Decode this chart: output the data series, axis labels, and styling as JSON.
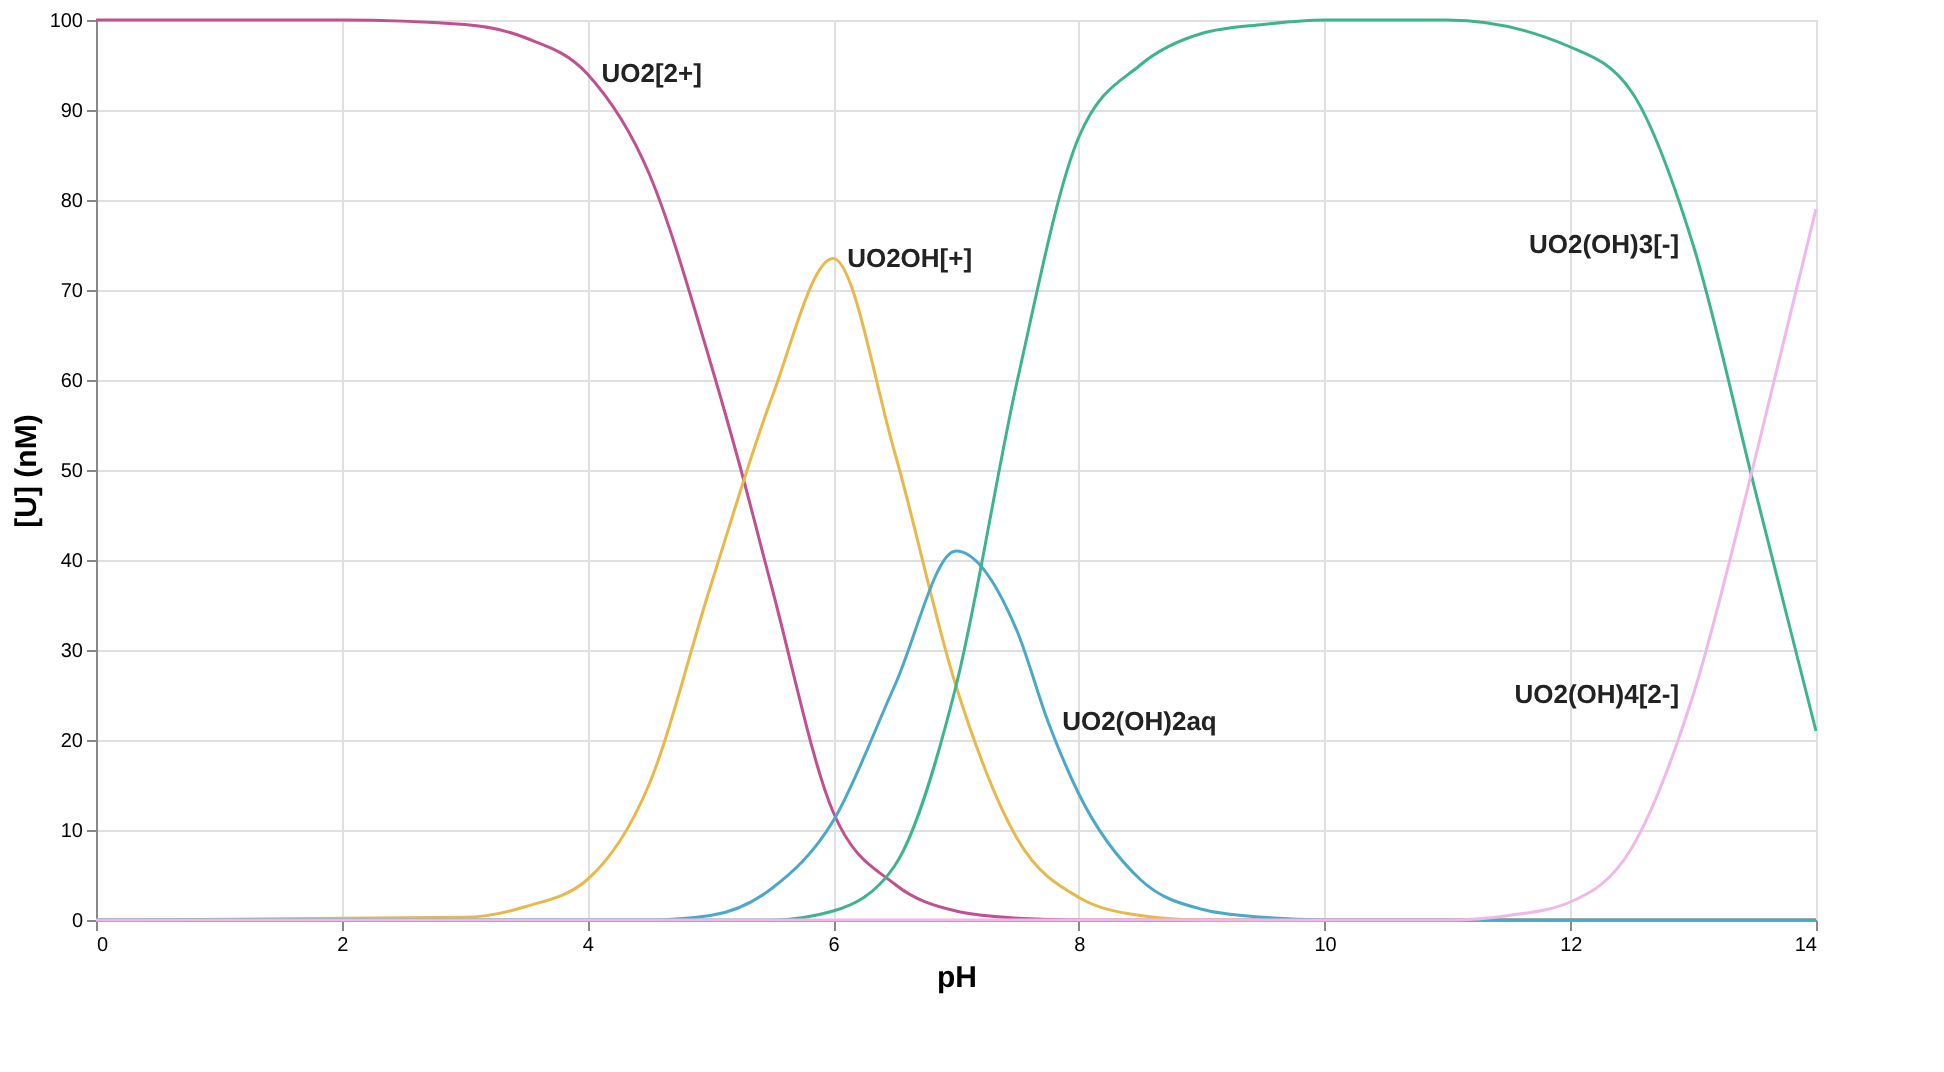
{
  "chart_data": {
    "type": "line",
    "xlabel": "pH",
    "ylabel": "[U] (nM)",
    "xlim": [
      0,
      14
    ],
    "ylim": [
      0,
      100
    ],
    "xticks": [
      {
        "value": 0,
        "label": "0"
      },
      {
        "value": 2,
        "label": "2"
      },
      {
        "value": 4,
        "label": "4"
      },
      {
        "value": 6,
        "label": "6"
      },
      {
        "value": 8,
        "label": "8"
      },
      {
        "value": 10,
        "label": "10"
      },
      {
        "value": 12,
        "label": "12"
      },
      {
        "value": 14,
        "label": "14"
      }
    ],
    "yticks": [
      0,
      10,
      20,
      30,
      40,
      50,
      60,
      70,
      80,
      90,
      100
    ],
    "grid": true,
    "marker": "none",
    "line_style": "solid",
    "series": [
      {
        "color": "#c0508f",
        "x": [
          0,
          2,
          3,
          3.5,
          4,
          4.5,
          5,
          5.25,
          5.5,
          6,
          6.5,
          7,
          7.5,
          8,
          10,
          14
        ],
        "values": [
          100,
          100,
          99.5,
          98,
          94,
          83,
          62,
          50,
          37,
          12,
          4,
          1,
          0.2,
          0,
          0,
          0
        ]
      },
      {
        "color": "#e8b84a",
        "x": [
          0,
          3,
          3.5,
          4,
          4.5,
          5,
          5.5,
          6,
          6.5,
          7,
          7.5,
          8,
          8.5,
          9,
          14
        ],
        "values": [
          0,
          0.3,
          1.5,
          4.5,
          15,
          37,
          58,
          73.5,
          52,
          26,
          9,
          2.5,
          0.5,
          0,
          0
        ]
      },
      {
        "color": "#4aa8c8",
        "x": [
          0,
          4.5,
          5,
          5.5,
          6,
          6.5,
          7,
          7.5,
          7.75,
          8,
          8.5,
          9,
          9.5,
          10,
          14
        ],
        "values": [
          0,
          0,
          0.5,
          3.5,
          11,
          26,
          41,
          32,
          22,
          14,
          4.5,
          1.2,
          0.3,
          0,
          0
        ]
      },
      {
        "color": "#3db38f",
        "x": [
          0,
          5.5,
          6,
          6.5,
          7,
          7.5,
          8,
          8.5,
          9,
          9.5,
          10,
          11,
          12,
          12.5,
          13,
          13.5,
          14
        ],
        "values": [
          0,
          0,
          1,
          6,
          26,
          60,
          87,
          95,
          98.5,
          99.5,
          100,
          100,
          97,
          92,
          75,
          48,
          21
        ]
      },
      {
        "color": "#f0b8e8",
        "x": [
          0,
          11,
          11.5,
          12,
          12.5,
          13,
          13.5,
          14
        ],
        "values": [
          0,
          0,
          0.5,
          2,
          8,
          25,
          51,
          79
        ]
      }
    ],
    "annotations": [
      {
        "text": "UO2[2+]",
        "x": 4,
        "y": 94
      },
      {
        "text": "UO2OH[+]",
        "x": 6,
        "y": 73.5
      },
      {
        "text": "UO2(OH)3[-]",
        "x": 13,
        "y": 75
      },
      {
        "text": "UO2(OH)2aq",
        "x": 7.75,
        "y": 22
      },
      {
        "text": "UO2(OH)4[2-]",
        "x": 13,
        "y": 25
      }
    ]
  }
}
